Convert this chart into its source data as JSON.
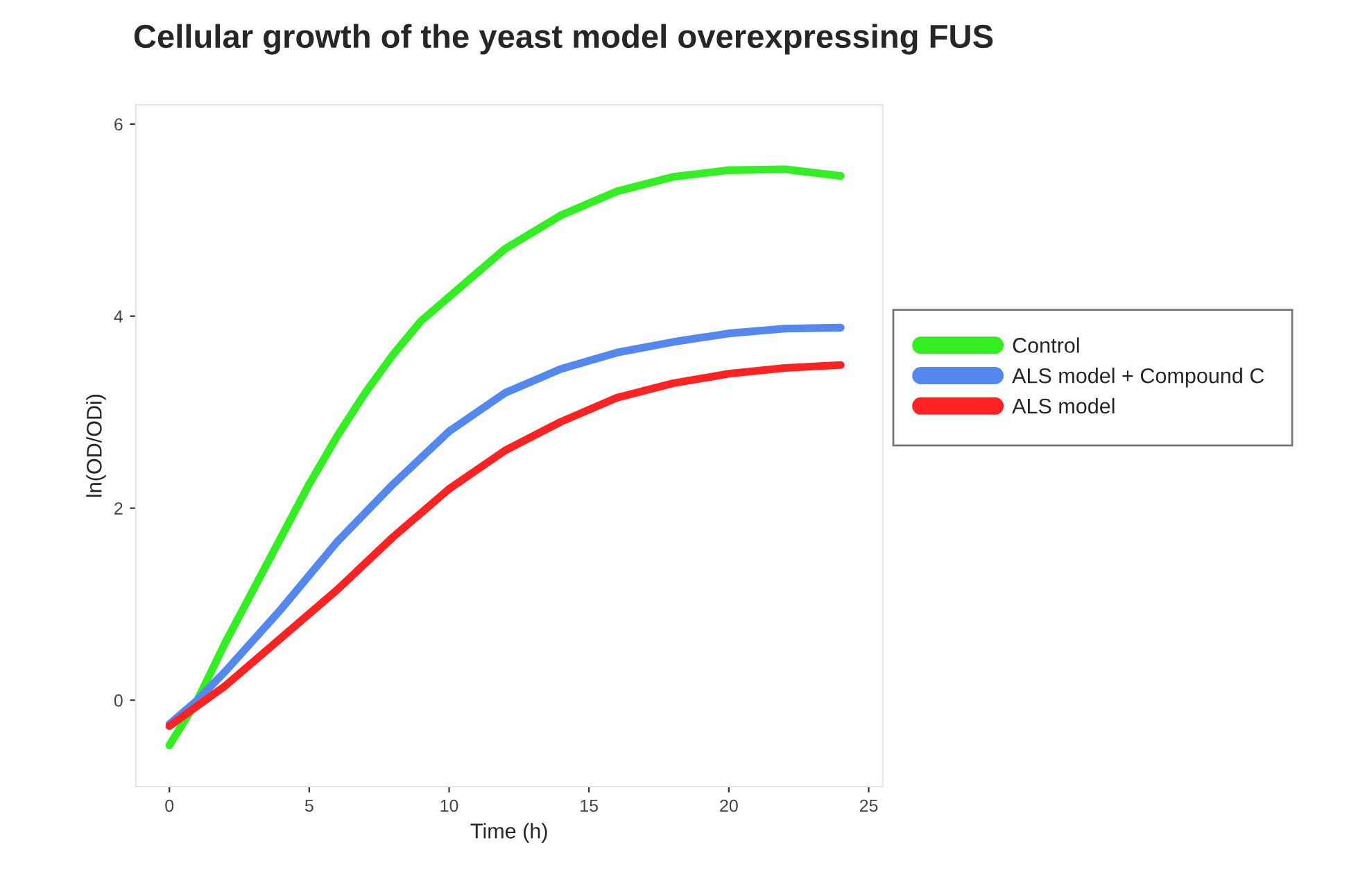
{
  "chart_data": {
    "type": "line",
    "title": "Cellular growth of the yeast model overexpressing FUS",
    "xlabel": "Time (h)",
    "ylabel": "ln(OD/ODi)",
    "xlim": [
      -1.2,
      25.5
    ],
    "xticks": [
      0,
      5,
      10,
      15,
      20,
      25
    ],
    "ylim": [
      -0.9,
      6.2
    ],
    "yticks": [
      0,
      2,
      4,
      6
    ],
    "grid": false,
    "legend": "right",
    "marker": "none",
    "line_style": "solid",
    "series": [
      {
        "name": "Control",
        "color": "#33ee22",
        "x": [
          0,
          1,
          2,
          3,
          4,
          5,
          6,
          7,
          8,
          9,
          10,
          12,
          14,
          16,
          18,
          20,
          22,
          24
        ],
        "values": [
          -0.47,
          0.0,
          0.6,
          1.15,
          1.7,
          2.25,
          2.75,
          3.2,
          3.6,
          3.95,
          4.2,
          4.7,
          5.05,
          5.3,
          5.45,
          5.52,
          5.53,
          5.46
        ]
      },
      {
        "name": "ALS model + Compound C",
        "color": "#5588ee",
        "x": [
          0,
          1,
          2,
          4,
          6,
          8,
          10,
          12,
          14,
          16,
          18,
          20,
          22,
          24
        ],
        "values": [
          -0.25,
          0.0,
          0.3,
          0.95,
          1.65,
          2.25,
          2.8,
          3.2,
          3.45,
          3.62,
          3.73,
          3.82,
          3.87,
          3.88
        ]
      },
      {
        "name": "ALS model",
        "color": "#ff2222",
        "x": [
          0,
          2,
          4,
          6,
          8,
          10,
          12,
          14,
          16,
          18,
          20,
          22,
          24
        ],
        "values": [
          -0.27,
          0.15,
          0.65,
          1.15,
          1.7,
          2.2,
          2.6,
          2.9,
          3.15,
          3.3,
          3.4,
          3.46,
          3.49
        ]
      }
    ]
  }
}
